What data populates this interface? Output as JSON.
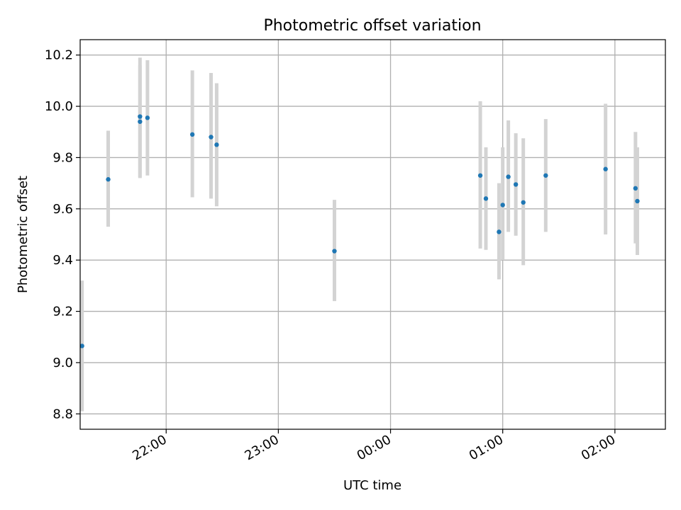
{
  "chart_data": {
    "type": "scatter",
    "title": "Photometric offset variation",
    "xlabel": "UTC time",
    "ylabel": "Photometric offset",
    "grid": true,
    "legend": "none",
    "x_unit": "UTC hh:mm (continuous across midnight)",
    "xlim": [
      "21:14",
      "02:27"
    ],
    "ylim": [
      8.74,
      10.26
    ],
    "x_ticks": [
      "22:00",
      "23:00",
      "00:00",
      "01:00",
      "02:00"
    ],
    "y_ticks": [
      "8.8",
      "9.0",
      "9.2",
      "9.4",
      "9.6",
      "9.8",
      "10.0",
      "10.2"
    ],
    "marker_color": "#1f77b4",
    "errorbar_color": "#d3d3d3",
    "points": [
      {
        "x": "21:15",
        "y": 9.065,
        "y_low": 8.81,
        "y_high": 9.32
      },
      {
        "x": "21:29",
        "y": 9.715,
        "y_low": 9.53,
        "y_high": 9.905
      },
      {
        "x": "21:46",
        "y": 9.96,
        "y_low": 9.72,
        "y_high": 10.19
      },
      {
        "x": "21:46",
        "y": 9.94,
        "y_low": 9.725,
        "y_high": 10.16
      },
      {
        "x": "21:50",
        "y": 9.955,
        "y_low": 9.73,
        "y_high": 10.18
      },
      {
        "x": "22:14",
        "y": 9.89,
        "y_low": 9.645,
        "y_high": 10.14
      },
      {
        "x": "22:24",
        "y": 9.88,
        "y_low": 9.64,
        "y_high": 10.13
      },
      {
        "x": "22:27",
        "y": 9.85,
        "y_low": 9.61,
        "y_high": 10.09
      },
      {
        "x": "23:30",
        "y": 9.435,
        "y_low": 9.24,
        "y_high": 9.635
      },
      {
        "x": "00:48",
        "y": 9.73,
        "y_low": 9.445,
        "y_high": 10.02
      },
      {
        "x": "00:51",
        "y": 9.64,
        "y_low": 9.44,
        "y_high": 9.84
      },
      {
        "x": "00:58",
        "y": 9.51,
        "y_low": 9.325,
        "y_high": 9.7
      },
      {
        "x": "01:00",
        "y": 9.615,
        "y_low": 9.4,
        "y_high": 9.84
      },
      {
        "x": "01:03",
        "y": 9.725,
        "y_low": 9.51,
        "y_high": 9.945
      },
      {
        "x": "01:07",
        "y": 9.695,
        "y_low": 9.495,
        "y_high": 9.895
      },
      {
        "x": "01:11",
        "y": 9.625,
        "y_low": 9.38,
        "y_high": 9.875
      },
      {
        "x": "01:23",
        "y": 9.73,
        "y_low": 9.51,
        "y_high": 9.95
      },
      {
        "x": "01:55",
        "y": 9.755,
        "y_low": 9.5,
        "y_high": 10.01
      },
      {
        "x": "02:11",
        "y": 9.68,
        "y_low": 9.465,
        "y_high": 9.9
      },
      {
        "x": "02:12",
        "y": 9.63,
        "y_low": 9.42,
        "y_high": 9.84
      }
    ]
  }
}
